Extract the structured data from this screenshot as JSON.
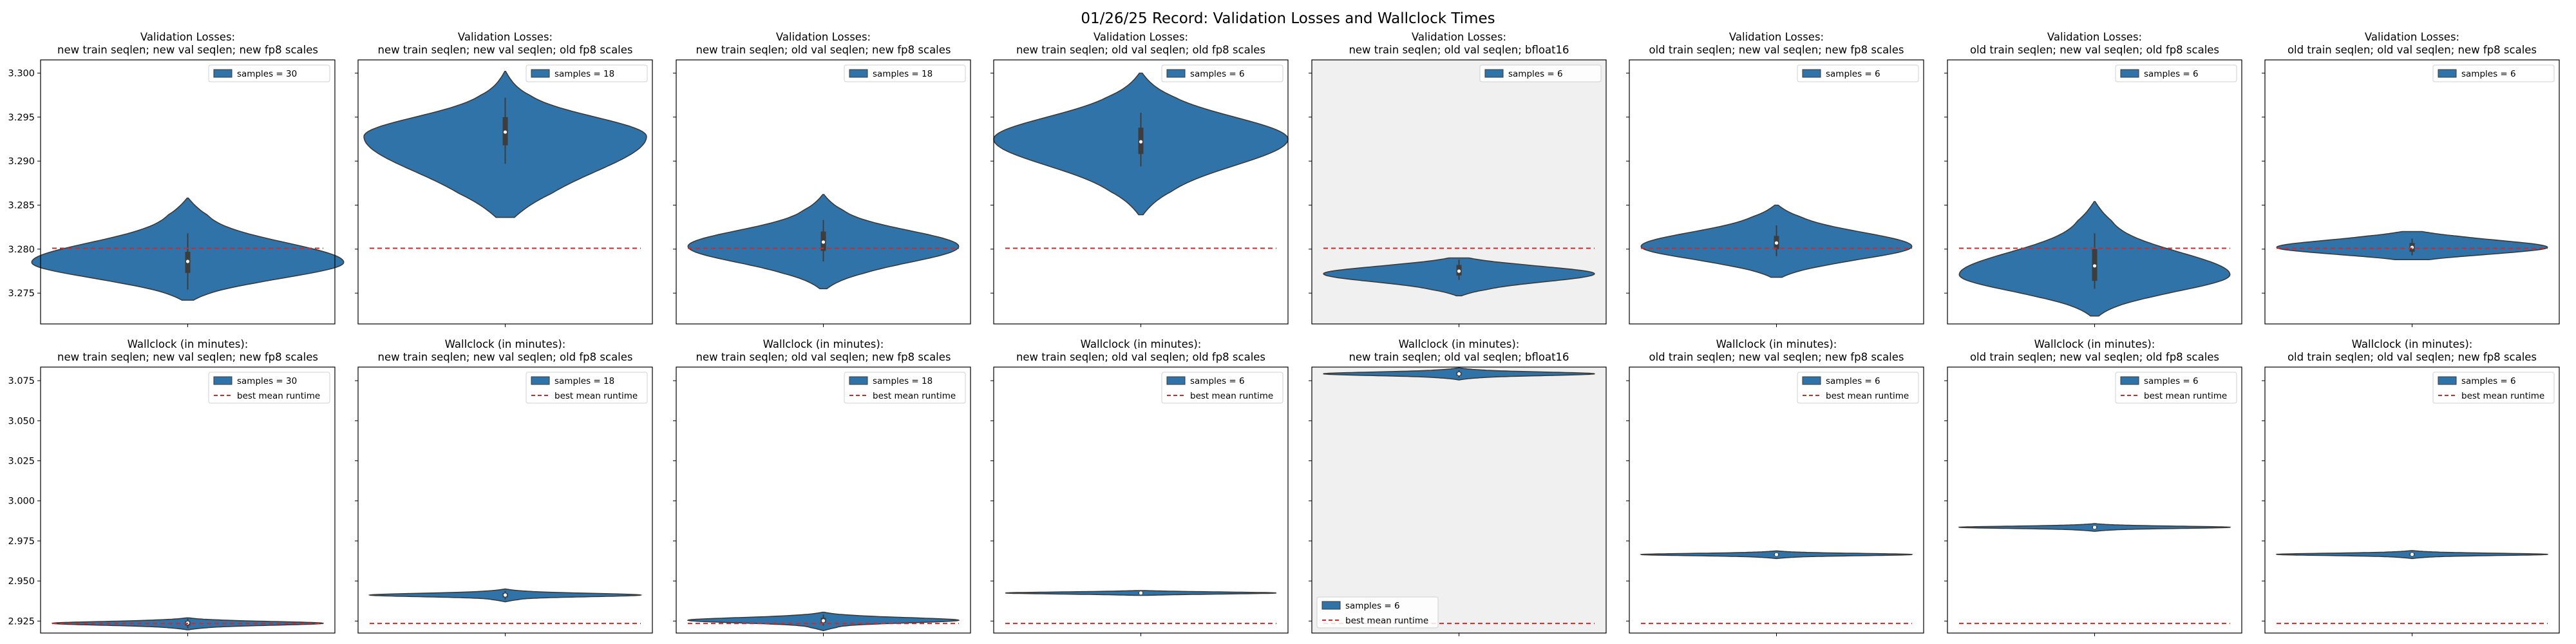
{
  "figure_title": "01/26/25 Record: Validation Losses and Wallclock Times",
  "colors": {
    "violin": "#2f73a8",
    "violin_edge": "#3a3a3a",
    "box": "#3d3d3d",
    "median": "#ffffff",
    "reference_line": "#d62728",
    "highlight_bg": "#f0f0f0",
    "axes_bg": "#ffffff"
  },
  "chart_data": [
    {
      "type": "violin",
      "title_line1": "Validation Losses:",
      "title_line2": "new train seqlen; new val seqlen; new fp8 scales",
      "ylim": [
        3.2715,
        3.3015
      ],
      "yticks": [
        3.275,
        3.28,
        3.285,
        3.29,
        3.295,
        3.3
      ],
      "show_yticklabels": true,
      "ref_y": 3.2801,
      "legend": [
        "samples = 30"
      ],
      "legend_loc": "upper right",
      "highlight": false,
      "violin": {
        "min": 3.2742,
        "max": 3.2858,
        "center": 3.2785,
        "sd_low": 0.0017,
        "sd_high": 0.0022,
        "mid": 0.11,
        "half_width": 0.53
      },
      "box": {
        "q1": 3.2773,
        "q3": 3.2797,
        "wmin": 3.2754,
        "wmax": 3.2818,
        "median": 3.2786
      }
    },
    {
      "type": "violin",
      "title_line1": "Validation Losses:",
      "title_line2": "new train seqlen; new val seqlen; old fp8 scales",
      "ylim": [
        3.2715,
        3.3015
      ],
      "yticks": [
        3.275,
        3.28,
        3.285,
        3.29,
        3.295,
        3.3
      ],
      "show_yticklabels": false,
      "ref_y": 3.2801,
      "legend": [
        "samples = 18"
      ],
      "legend_loc": "upper right",
      "highlight": false,
      "violin": {
        "min": 3.2836,
        "max": 3.3002,
        "center": 3.2928,
        "sd_low": 0.004,
        "sd_high": 0.0022,
        "mid": 0.0,
        "half_width": 0.48
      },
      "box": {
        "q1": 3.2918,
        "q3": 3.295,
        "wmin": 3.2897,
        "wmax": 3.2972,
        "median": 3.2933
      }
    },
    {
      "type": "violin",
      "title_line1": "Validation Losses:",
      "title_line2": "new train seqlen; old val seqlen; new fp8 scales",
      "ylim": [
        3.2715,
        3.3015
      ],
      "yticks": [
        3.275,
        3.28,
        3.285,
        3.29,
        3.295,
        3.3
      ],
      "show_yticklabels": false,
      "ref_y": 3.2801,
      "legend": [
        "samples = 18"
      ],
      "legend_loc": "upper right",
      "highlight": false,
      "violin": {
        "min": 3.2755,
        "max": 3.2862,
        "center": 3.2803,
        "sd_low": 0.0018,
        "sd_high": 0.0018,
        "mid": 0.0,
        "half_width": 0.46
      },
      "box": {
        "q1": 3.2798,
        "q3": 3.282,
        "wmin": 3.2786,
        "wmax": 3.2833,
        "median": 3.2808
      }
    },
    {
      "type": "violin",
      "title_line1": "Validation Losses:",
      "title_line2": "new train seqlen; old val seqlen; old fp8 scales",
      "ylim": [
        3.2715,
        3.3015
      ],
      "yticks": [
        3.275,
        3.28,
        3.285,
        3.29,
        3.295,
        3.3
      ],
      "show_yticklabels": false,
      "ref_y": 3.2801,
      "legend": [
        "samples = 6"
      ],
      "legend_loc": "upper right",
      "highlight": false,
      "violin": {
        "min": 3.2839,
        "max": 3.3,
        "center": 3.2925,
        "sd_low": 0.003,
        "sd_high": 0.0025,
        "mid": 0.0,
        "half_width": 0.5
      },
      "box": {
        "q1": 3.2908,
        "q3": 3.2938,
        "wmin": 3.2894,
        "wmax": 3.2955,
        "median": 3.2922
      }
    },
    {
      "type": "violin",
      "title_line1": "Validation Losses:",
      "title_line2": "new train seqlen; old val seqlen; bfloat16",
      "ylim": [
        3.2715,
        3.3015
      ],
      "yticks": [
        3.275,
        3.28,
        3.285,
        3.29,
        3.295,
        3.3
      ],
      "show_yticklabels": false,
      "ref_y": 3.2801,
      "legend": [
        "samples = 6"
      ],
      "legend_loc": "upper right",
      "highlight": true,
      "violin": {
        "min": 3.2747,
        "max": 3.279,
        "center": 3.2772,
        "sd_low": 0.0009,
        "sd_high": 0.0008,
        "mid": 0.0,
        "half_width": 0.46
      },
      "box": {
        "q1": 3.277,
        "q3": 3.2782,
        "wmin": 3.2765,
        "wmax": 3.2788,
        "median": 3.2775
      }
    },
    {
      "type": "violin",
      "title_line1": "Validation Losses:",
      "title_line2": "old train seqlen; new val seqlen; new fp8 scales",
      "ylim": [
        3.2715,
        3.3015
      ],
      "yticks": [
        3.275,
        3.28,
        3.285,
        3.29,
        3.295,
        3.3
      ],
      "show_yticklabels": false,
      "ref_y": 3.2801,
      "legend": [
        "samples = 6"
      ],
      "legend_loc": "upper right",
      "highlight": false,
      "violin": {
        "min": 3.2768,
        "max": 3.285,
        "center": 3.2803,
        "sd_low": 0.0014,
        "sd_high": 0.0016,
        "mid": 0.0,
        "half_width": 0.46
      },
      "box": {
        "q1": 3.28,
        "q3": 3.2815,
        "wmin": 3.2792,
        "wmax": 3.2827,
        "median": 3.2807
      }
    },
    {
      "type": "violin",
      "title_line1": "Validation Losses:",
      "title_line2": "old train seqlen; new val seqlen; old fp8 scales",
      "ylim": [
        3.2715,
        3.3015
      ],
      "yticks": [
        3.275,
        3.28,
        3.285,
        3.29,
        3.295,
        3.3
      ],
      "show_yticklabels": false,
      "ref_y": 3.2801,
      "legend": [
        "samples = 6"
      ],
      "legend_loc": "upper right",
      "highlight": false,
      "violin": {
        "min": 3.2724,
        "max": 3.2854,
        "center": 3.2771,
        "sd_low": 0.0018,
        "sd_high": 0.0025,
        "mid": 0.0,
        "half_width": 0.46
      },
      "box": {
        "q1": 3.2764,
        "q3": 3.28,
        "wmin": 3.2755,
        "wmax": 3.2818,
        "median": 3.2781
      }
    },
    {
      "type": "violin",
      "title_line1": "Validation Losses:",
      "title_line2": "old train seqlen; old val seqlen; new fp8 scales",
      "ylim": [
        3.2715,
        3.3015
      ],
      "yticks": [
        3.275,
        3.28,
        3.285,
        3.29,
        3.295,
        3.3
      ],
      "show_yticklabels": false,
      "ref_y": 3.2801,
      "legend": [
        "samples = 6"
      ],
      "legend_loc": "upper right",
      "highlight": false,
      "violin": {
        "min": 3.2788,
        "max": 3.282,
        "center": 3.2802,
        "sd_low": 0.0007,
        "sd_high": 0.0008,
        "mid": 0.0,
        "half_width": 0.46
      },
      "box": {
        "q1": 3.2797,
        "q3": 3.2807,
        "wmin": 3.2793,
        "wmax": 3.2812,
        "median": 3.2802
      }
    },
    {
      "type": "violin",
      "title_line1": "Wallclock (in minutes):",
      "title_line2": "new train seqlen; new val seqlen; new fp8 scales",
      "ylim": [
        2.9175,
        3.0835
      ],
      "yticks": [
        2.925,
        2.95,
        2.975,
        3.0,
        3.025,
        3.05,
        3.075
      ],
      "show_yticklabels": true,
      "ref_y": 2.9235,
      "legend": [
        "samples = 30",
        "best mean runtime"
      ],
      "legend_loc": "upper right",
      "highlight": false,
      "violin": {
        "min": 2.9195,
        "max": 2.927,
        "center": 2.9236,
        "sd_low": 0.0012,
        "sd_high": 0.0011,
        "mid": 0.0,
        "half_width": 0.46
      },
      "box": {
        "q1": 2.9222,
        "q3": 2.925,
        "wmin": 2.9205,
        "wmax": 2.9265,
        "median": 2.9238
      }
    },
    {
      "type": "violin",
      "title_line1": "Wallclock (in minutes):",
      "title_line2": "new train seqlen; new val seqlen; old fp8 scales",
      "ylim": [
        2.9175,
        3.0835
      ],
      "yticks": [
        2.925,
        2.95,
        2.975,
        3.0,
        3.025,
        3.05,
        3.075
      ],
      "show_yticklabels": false,
      "ref_y": 2.9235,
      "legend": [
        "samples = 18",
        "best mean runtime"
      ],
      "legend_loc": "upper right",
      "highlight": false,
      "violin": {
        "min": 2.937,
        "max": 2.945,
        "center": 2.9412,
        "sd_low": 0.001,
        "sd_high": 0.0011,
        "mid": 0.0,
        "half_width": 0.46
      },
      "box": {
        "q1": 2.9398,
        "q3": 2.9425,
        "wmin": 2.9385,
        "wmax": 2.9438,
        "median": 2.9412
      }
    },
    {
      "type": "violin",
      "title_line1": "Wallclock (in minutes):",
      "title_line2": "new train seqlen; old val seqlen; new fp8 scales",
      "ylim": [
        2.9175,
        3.0835
      ],
      "yticks": [
        2.925,
        2.95,
        2.975,
        3.0,
        3.025,
        3.05,
        3.075
      ],
      "show_yticklabels": false,
      "ref_y": 2.9235,
      "legend": [
        "samples = 18",
        "best mean runtime"
      ],
      "legend_loc": "upper right",
      "highlight": false,
      "violin": {
        "min": 2.919,
        "max": 2.9305,
        "center": 2.9255,
        "sd_low": 0.0016,
        "sd_high": 0.0016,
        "mid": 0.0,
        "half_width": 0.46
      },
      "box": {
        "q1": 2.924,
        "q3": 2.927,
        "wmin": 2.9222,
        "wmax": 2.929,
        "median": 2.9252
      }
    },
    {
      "type": "violin",
      "title_line1": "Wallclock (in minutes):",
      "title_line2": "new train seqlen; old val seqlen; old fp8 scales",
      "ylim": [
        2.9175,
        3.0835
      ],
      "yticks": [
        2.925,
        2.95,
        2.975,
        3.0,
        3.025,
        3.05,
        3.075
      ],
      "show_yticklabels": false,
      "ref_y": 2.9235,
      "legend": [
        "samples = 6",
        "best mean runtime"
      ],
      "legend_loc": "upper right",
      "highlight": false,
      "violin": {
        "min": 2.941,
        "max": 2.944,
        "center": 2.9425,
        "sd_low": 0.0006,
        "sd_high": 0.0006,
        "mid": 0.0,
        "half_width": 0.46
      },
      "box": {
        "q1": 2.942,
        "q3": 2.943,
        "wmin": 2.9415,
        "wmax": 2.9435,
        "median": 2.9425
      }
    },
    {
      "type": "violin",
      "title_line1": "Wallclock (in minutes):",
      "title_line2": "new train seqlen; old val seqlen; bfloat16",
      "ylim": [
        2.9175,
        3.0835
      ],
      "yticks": [
        2.925,
        2.95,
        2.975,
        3.0,
        3.025,
        3.05,
        3.075
      ],
      "show_yticklabels": false,
      "ref_y": 2.9235,
      "legend": [
        "samples = 6",
        "best mean runtime"
      ],
      "legend_loc": "lower left",
      "highlight": true,
      "violin": {
        "min": 3.0755,
        "max": 3.083,
        "center": 3.0793,
        "sd_low": 0.0011,
        "sd_high": 0.0011,
        "mid": 0.0,
        "half_width": 0.46
      },
      "box": {
        "q1": 3.0782,
        "q3": 3.0805,
        "wmin": 3.077,
        "wmax": 3.0815,
        "median": 3.0793
      }
    },
    {
      "type": "violin",
      "title_line1": "Wallclock (in minutes):",
      "title_line2": "old train seqlen; new val seqlen; new fp8 scales",
      "ylim": [
        2.9175,
        3.0835
      ],
      "yticks": [
        2.925,
        2.95,
        2.975,
        3.0,
        3.025,
        3.05,
        3.075
      ],
      "show_yticklabels": false,
      "ref_y": 2.9235,
      "legend": [
        "samples = 6",
        "best mean runtime"
      ],
      "legend_loc": "upper right",
      "highlight": false,
      "violin": {
        "min": 2.964,
        "max": 2.9688,
        "center": 2.9665,
        "sd_low": 0.0007,
        "sd_high": 0.0007,
        "mid": 0.0,
        "half_width": 0.46
      },
      "box": {
        "q1": 2.9658,
        "q3": 2.9672,
        "wmin": 2.965,
        "wmax": 2.968,
        "median": 2.9665
      }
    },
    {
      "type": "violin",
      "title_line1": "Wallclock (in minutes):",
      "title_line2": "old train seqlen; new val seqlen; old fp8 scales",
      "ylim": [
        2.9175,
        3.0835
      ],
      "yticks": [
        2.925,
        2.95,
        2.975,
        3.0,
        3.025,
        3.05,
        3.075
      ],
      "show_yticklabels": false,
      "ref_y": 2.9235,
      "legend": [
        "samples = 6",
        "best mean runtime"
      ],
      "legend_loc": "upper right",
      "highlight": false,
      "violin": {
        "min": 2.981,
        "max": 2.9858,
        "center": 2.9835,
        "sd_low": 0.0007,
        "sd_high": 0.0007,
        "mid": 0.0,
        "half_width": 0.46
      },
      "box": {
        "q1": 2.9828,
        "q3": 2.9842,
        "wmin": 2.982,
        "wmax": 2.985,
        "median": 2.9835
      }
    },
    {
      "type": "violin",
      "title_line1": "Wallclock (in minutes):",
      "title_line2": "old train seqlen; old val seqlen; new fp8 scales",
      "ylim": [
        2.9175,
        3.0835
      ],
      "yticks": [
        2.925,
        2.95,
        2.975,
        3.0,
        3.025,
        3.05,
        3.075
      ],
      "show_yticklabels": false,
      "ref_y": 2.9235,
      "legend": [
        "samples = 6",
        "best mean runtime"
      ],
      "legend_loc": "upper right",
      "highlight": false,
      "violin": {
        "min": 2.964,
        "max": 2.969,
        "center": 2.9666,
        "sd_low": 0.0007,
        "sd_high": 0.0007,
        "mid": 0.0,
        "half_width": 0.46
      },
      "box": {
        "q1": 2.9658,
        "q3": 2.9674,
        "wmin": 2.965,
        "wmax": 2.9682,
        "median": 2.9666
      }
    }
  ]
}
